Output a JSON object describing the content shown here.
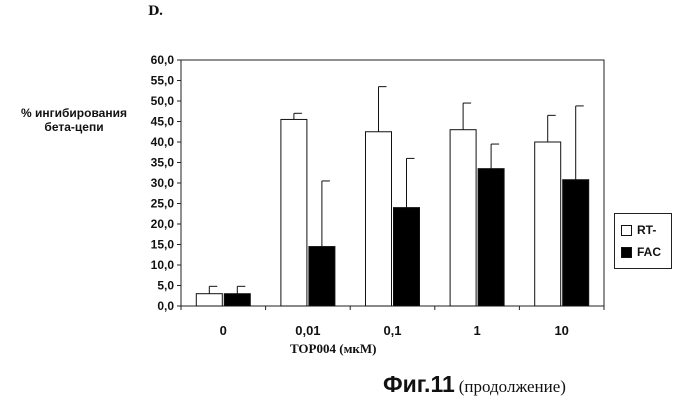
{
  "panel_letter": "D.",
  "figure_caption": {
    "main": "Фиг.11",
    "sub": "(продолжение)"
  },
  "chart_data": {
    "type": "bar",
    "title": "",
    "ylabel_line1": "% ингибирования",
    "ylabel_line2": "бета-цепи",
    "xlabel": "TOP004 (мкМ)",
    "categories": [
      "0",
      "0,01",
      "0,1",
      "1",
      "10"
    ],
    "ylim": [
      0,
      60
    ],
    "yticks": [
      "0,0",
      "5,0",
      "10,0",
      "15,0",
      "20,0",
      "25,0",
      "30,0",
      "35,0",
      "40,0",
      "45,0",
      "50,0",
      "55,0",
      "60,0"
    ],
    "grid": false,
    "legend_position": "right",
    "series": [
      {
        "name": "RT-",
        "color": "#ffffff",
        "values": [
          3.0,
          45.5,
          42.5,
          43.0,
          40.0
        ],
        "error": [
          1.8,
          1.5,
          11.0,
          6.5,
          6.5
        ]
      },
      {
        "name": "FAC",
        "color": "#000000",
        "values": [
          3.0,
          14.5,
          24.0,
          33.5,
          30.8
        ],
        "error": [
          1.8,
          16.0,
          12.0,
          6.0,
          18.0
        ]
      }
    ]
  }
}
